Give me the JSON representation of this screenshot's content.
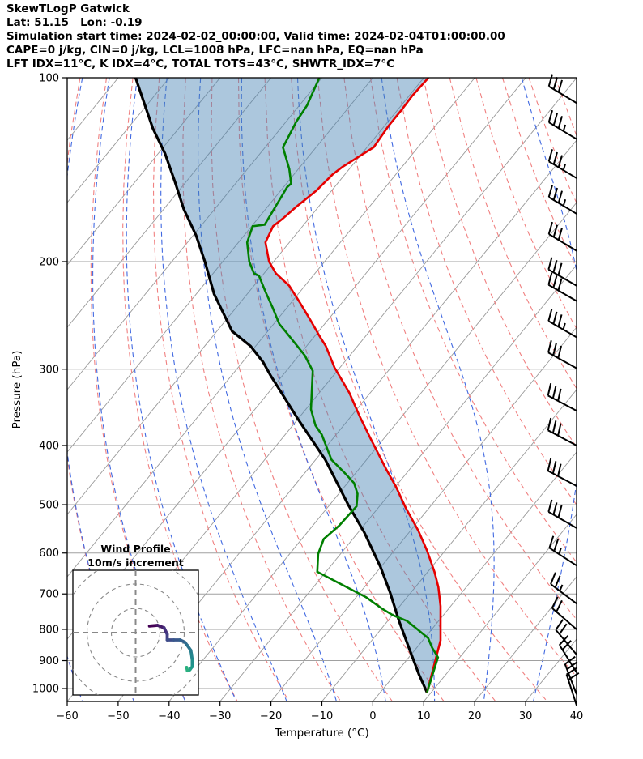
{
  "header": {
    "lines": [
      "SkewTLogP Gatwick",
      "Lat: 51.15   Lon: -0.19",
      "Simulation start time: 2024-02-02_00:00:00, Valid time: 2024-02-04T01:00:00.00",
      "CAPE=0 j/kg, CIN=0 j/kg, LCL=1008 hPa, LFC=nan hPa, EQ=nan hPa",
      "LFT IDX=11°C, K IDX=4°C, TOTAL TOTS=43°C, SHWTR_IDX=7°C"
    ]
  },
  "chart_data": {
    "type": "line",
    "subtype": "skewt-logp",
    "x_axis": {
      "label": "Temperature (°C)",
      "min": -60,
      "max": 40,
      "ticks": [
        -60,
        -50,
        -40,
        -30,
        -20,
        -10,
        0,
        10,
        20,
        30,
        40
      ],
      "tick_labels": [
        "−60",
        "−50",
        "−40",
        "−30",
        "−20",
        "−10",
        "0",
        "10",
        "20",
        "30",
        "40"
      ]
    },
    "y_axis": {
      "label": "Pressure (hPa)",
      "min": 100,
      "max": 1050,
      "scale": "log",
      "ticks": [
        100,
        200,
        300,
        400,
        500,
        600,
        700,
        800,
        900,
        1000
      ]
    },
    "skew_deg": 45,
    "grid": {
      "isotherms": {
        "start": -170,
        "end": 40,
        "step": 10,
        "color": "#999999"
      },
      "dry_adiabats": {
        "start": -60,
        "end": 140,
        "step": 10,
        "color": "#f08080"
      },
      "moist_adiabats": {
        "start": -60,
        "end": 40,
        "step": 10,
        "color": "#4169e1"
      },
      "pressure_line_color": "#a0a0a0"
    },
    "shading": {
      "between": [
        "parcel",
        "temperature"
      ],
      "color": "#4682b4",
      "opacity": 0.45
    },
    "profiles": {
      "temperature_color": "#e60000",
      "dewpoint_color": "#007f00",
      "parcel_color": "#000000",
      "temperature_c": [
        [
          100,
          -89.1
        ],
        [
          107,
          -89.4
        ],
        [
          113,
          -89.2
        ],
        [
          120,
          -89.2
        ],
        [
          130,
          -88.7
        ],
        [
          140,
          -91.7
        ],
        [
          144,
          -92.4
        ],
        [
          153,
          -93.0
        ],
        [
          163,
          -94.4
        ],
        [
          170,
          -95.1
        ],
        [
          175,
          -95.8
        ],
        [
          186,
          -94.7
        ],
        [
          200,
          -90.9
        ],
        [
          209,
          -87.7
        ],
        [
          219,
          -83.1
        ],
        [
          233,
          -78.4
        ],
        [
          250,
          -73.2
        ],
        [
          265,
          -69.0
        ],
        [
          275,
          -66.2
        ],
        [
          298,
          -61.1
        ],
        [
          328,
          -54.1
        ],
        [
          359,
          -48.2
        ],
        [
          392,
          -42.2
        ],
        [
          437,
          -34.7
        ],
        [
          468,
          -29.8
        ],
        [
          506,
          -24.6
        ],
        [
          552,
          -18.4
        ],
        [
          595,
          -13.5
        ],
        [
          644,
          -8.7
        ],
        [
          682,
          -5.5
        ],
        [
          733,
          -2.0
        ],
        [
          834,
          3.5
        ],
        [
          1015,
          9.2
        ]
      ],
      "dewpoint_c": [
        [
          100,
          -110.5
        ],
        [
          111,
          -108.5
        ],
        [
          118,
          -108.0
        ],
        [
          130,
          -106.5
        ],
        [
          141,
          -101.8
        ],
        [
          149,
          -99.1
        ],
        [
          151,
          -99.3
        ],
        [
          174,
          -97.7
        ],
        [
          175,
          -99.8
        ],
        [
          186,
          -98.3
        ],
        [
          200,
          -94.8
        ],
        [
          209,
          -92.0
        ],
        [
          211,
          -90.6
        ],
        [
          224,
          -86.8
        ],
        [
          238,
          -82.8
        ],
        [
          253,
          -78.9
        ],
        [
          262,
          -75.9
        ],
        [
          275,
          -71.8
        ],
        [
          285,
          -68.8
        ],
        [
          302,
          -64.8
        ],
        [
          349,
          -59.0
        ],
        [
          371,
          -55.5
        ],
        [
          384,
          -52.8
        ],
        [
          422,
          -46.9
        ],
        [
          443,
          -42.3
        ],
        [
          461,
          -38.7
        ],
        [
          480,
          -36.3
        ],
        [
          503,
          -34.5
        ],
        [
          541,
          -34.8
        ],
        [
          569,
          -35.7
        ],
        [
          602,
          -34.4
        ],
        [
          644,
          -31.7
        ],
        [
          709,
          -18.0
        ],
        [
          741,
          -12.9
        ],
        [
          759,
          -9.8
        ],
        [
          775,
          -6.2
        ],
        [
          794,
          -3.6
        ],
        [
          827,
          0.7
        ],
        [
          857,
          3.0
        ],
        [
          889,
          5.7
        ],
        [
          1015,
          9.2
        ]
      ],
      "parcel_c": [
        [
          100,
          -146.6
        ],
        [
          109,
          -141.4
        ],
        [
          121,
          -135.1
        ],
        [
          133,
          -128.7
        ],
        [
          148,
          -122.2
        ],
        [
          164,
          -116.1
        ],
        [
          181,
          -109.5
        ],
        [
          200,
          -103.5
        ],
        [
          226,
          -96.5
        ],
        [
          260,
          -87.0
        ],
        [
          275,
          -81.0
        ],
        [
          292,
          -76.0
        ],
        [
          307,
          -72.4
        ],
        [
          362,
          -60.0
        ],
        [
          422,
          -48.1
        ],
        [
          500,
          -36.4
        ],
        [
          555,
          -28.8
        ],
        [
          633,
          -20.0
        ],
        [
          695,
          -14.2
        ],
        [
          776,
          -7.7
        ],
        [
          858,
          -1.5
        ],
        [
          948,
          4.7
        ],
        [
          1015,
          9.2
        ]
      ]
    },
    "wind_barbs": {
      "full_barb_ms": 10,
      "stations": [
        {
          "p": 110,
          "angle": 31,
          "speed": 30
        },
        {
          "p": 126,
          "angle": 31,
          "speed": 35
        },
        {
          "p": 146,
          "angle": 31,
          "speed": 35
        },
        {
          "p": 167,
          "angle": 31,
          "speed": 35
        },
        {
          "p": 192,
          "angle": 31,
          "speed": 30
        },
        {
          "p": 219,
          "angle": 30,
          "speed": 30
        },
        {
          "p": 232,
          "angle": 30,
          "speed": 30
        },
        {
          "p": 266,
          "angle": 30,
          "speed": 35
        },
        {
          "p": 299,
          "angle": 29,
          "speed": 30
        },
        {
          "p": 351,
          "angle": 28,
          "speed": 30
        },
        {
          "p": 400,
          "angle": 28,
          "speed": 30
        },
        {
          "p": 466,
          "angle": 28,
          "speed": 30
        },
        {
          "p": 546,
          "angle": 30,
          "speed": 30
        },
        {
          "p": 629,
          "angle": 33,
          "speed": 25
        },
        {
          "p": 726,
          "angle": 37,
          "speed": 25
        },
        {
          "p": 800,
          "angle": 41,
          "speed": 20
        },
        {
          "p": 880,
          "angle": 50,
          "speed": 20
        },
        {
          "p": 941,
          "angle": 58,
          "speed": 20
        },
        {
          "p": 1022,
          "angle": 69,
          "speed": 20
        },
        {
          "p": 1065,
          "angle": 72,
          "speed": 20
        }
      ]
    },
    "hodograph": {
      "title": "Wind Profile",
      "subtitle": "10m/s increment",
      "ring_step_ms": 10,
      "rings": [
        10,
        20,
        30
      ],
      "trace_uv": [
        [
          5.7,
          2.7
        ],
        [
          9,
          3
        ],
        [
          11.7,
          2
        ],
        [
          13,
          -0.7
        ],
        [
          13,
          -3
        ],
        [
          15.7,
          -3
        ],
        [
          18.3,
          -3
        ],
        [
          20.3,
          -4
        ],
        [
          21.3,
          -5.3
        ],
        [
          22.7,
          -7.3
        ],
        [
          23,
          -9
        ],
        [
          23.3,
          -11.3
        ],
        [
          23.3,
          -14
        ],
        [
          22.3,
          -15.3
        ],
        [
          21.3,
          -15.7
        ],
        [
          21,
          -14.3
        ]
      ],
      "palette": [
        "#440154",
        "#46327e",
        "#3e4c8a",
        "#34618d",
        "#2b748e",
        "#24878e",
        "#1f9a8a",
        "#2ab07f"
      ]
    }
  }
}
